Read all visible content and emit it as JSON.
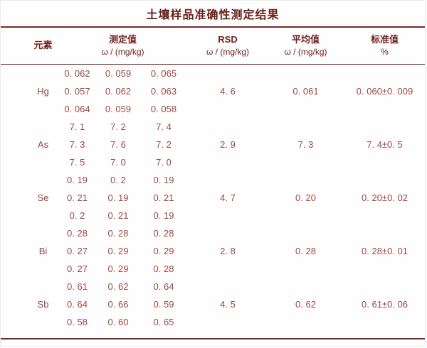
{
  "title": "土壤样品准确性测定结果",
  "table": {
    "headers": {
      "element": "元素",
      "measured": "测定值",
      "measured_unit": "ω / (mg/kg)",
      "rsd": "RSD",
      "rsd_unit": "ω / (mg/kg)",
      "average": "平均值",
      "average_unit": "ω / (mg/kg)",
      "standard": "标准值",
      "standard_unit": "%"
    },
    "rows": [
      {
        "element": "Hg",
        "measurements": [
          [
            "0. 062",
            "0. 059",
            "0. 065"
          ],
          [
            "0. 057",
            "0. 062",
            "0. 063"
          ],
          [
            "0. 064",
            "0. 059",
            "0. 058"
          ]
        ],
        "rsd": "4. 6",
        "average": "0. 061",
        "standard": "0. 060±0. 009"
      },
      {
        "element": "As",
        "measurements": [
          [
            "7. 1",
            "7. 2",
            "7. 4"
          ],
          [
            "7. 3",
            "7. 6",
            "7. 2"
          ],
          [
            "7. 5",
            "7. 0",
            "7. 0"
          ]
        ],
        "rsd": "2. 9",
        "average": "7. 3",
        "standard": "7. 4±0. 5"
      },
      {
        "element": "Se",
        "measurements": [
          [
            "0. 19",
            "0. 2",
            "0. 19"
          ],
          [
            "0. 21",
            "0. 19",
            "0. 21"
          ],
          [
            "0. 2",
            "0. 21",
            "0. 19"
          ]
        ],
        "rsd": "4. 7",
        "average": "0. 20",
        "standard": "0. 20±0. 02"
      },
      {
        "element": "Bi",
        "measurements": [
          [
            "0. 28",
            "0. 28",
            "0. 28"
          ],
          [
            "0. 27",
            "0. 29",
            "0. 29"
          ],
          [
            "0. 27",
            "0. 29",
            "0. 28"
          ]
        ],
        "rsd": "2. 8",
        "average": "0. 28",
        "standard": "0. 28±0. 01"
      },
      {
        "element": "Sb",
        "measurements": [
          [
            "0. 61",
            "0. 62",
            "0. 64"
          ],
          [
            "0. 64",
            "0. 66",
            "0. 59"
          ],
          [
            "0. 58",
            "0. 60",
            "0. 65"
          ]
        ],
        "rsd": "4. 5",
        "average": "0. 62",
        "standard": "0. 61±0. 06"
      }
    ],
    "colors": {
      "title_text": "#6b1d18",
      "header_text": "#71241f",
      "data_text": "#9a4a42",
      "rule": "#7b2a26"
    }
  }
}
